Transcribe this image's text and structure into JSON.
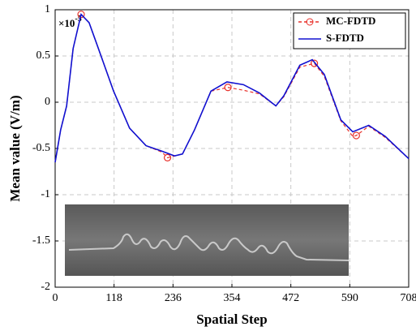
{
  "chart_data": {
    "type": "line",
    "xlabel": "Spatial Step",
    "ylabel": "Mean value (V/m)",
    "y_multiplier": {
      "base": "×10",
      "exponent": "-5"
    },
    "xlim": [
      0,
      708
    ],
    "xticks": [
      0,
      118,
      236,
      354,
      472,
      590,
      708
    ],
    "ylim": [
      -2,
      1
    ],
    "yticks": [
      1,
      0.5,
      0,
      -0.5,
      -1,
      -1.5,
      -2
    ],
    "grid": true,
    "legend": "upper right",
    "series": [
      {
        "name": "MC-FDTD",
        "color": "#e8302a",
        "style": "dashed",
        "marker": "circle",
        "marker_indices": [
          4,
          11,
          15,
          21,
          25
        ],
        "x": [
          0,
          11,
          23,
          36,
          52,
          68,
          84,
          117,
          149,
          182,
          214,
          225,
          255,
          279,
          312,
          346,
          377,
          409,
          442,
          458,
          490,
          519,
          539,
          572,
          596,
          603,
          628,
          661,
          708
        ],
        "values": [
          -0.65,
          -0.3,
          -0.04,
          0.58,
          0.95,
          0.86,
          0.62,
          0.12,
          -0.28,
          -0.47,
          -0.54,
          -0.6,
          -0.56,
          -0.3,
          0.12,
          0.16,
          0.13,
          0.09,
          -0.04,
          0.06,
          0.38,
          0.42,
          0.28,
          -0.2,
          -0.37,
          -0.36,
          -0.26,
          -0.38,
          -0.61
        ]
      },
      {
        "name": "S-FDTD",
        "color": "#1010d0",
        "style": "solid",
        "x": [
          0,
          11,
          23,
          36,
          52,
          68,
          84,
          117,
          149,
          182,
          214,
          239,
          255,
          279,
          312,
          344,
          377,
          409,
          442,
          458,
          490,
          515,
          539,
          572,
          596,
          628,
          661,
          708
        ],
        "values": [
          -0.65,
          -0.3,
          -0.04,
          0.58,
          0.95,
          0.86,
          0.62,
          0.12,
          -0.28,
          -0.47,
          -0.53,
          -0.58,
          -0.56,
          -0.3,
          0.12,
          0.22,
          0.19,
          0.1,
          -0.04,
          0.07,
          0.4,
          0.46,
          0.3,
          -0.19,
          -0.32,
          -0.25,
          -0.37,
          -0.61
        ]
      }
    ]
  }
}
